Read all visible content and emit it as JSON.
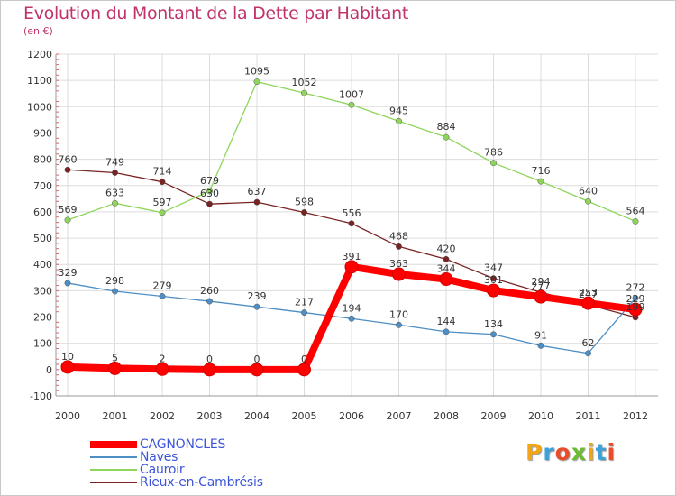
{
  "title": "Evolution du Montant de la Dette par Habitant",
  "subtitle": "(en €)",
  "chart_data": {
    "type": "line",
    "title": "Evolution du Montant de la Dette par Habitant",
    "subtitle": "(en €)",
    "xlabel": "",
    "ylabel": "",
    "ylim": [
      -100,
      1200
    ],
    "yticks": [
      -100,
      0,
      100,
      200,
      300,
      400,
      500,
      600,
      700,
      800,
      900,
      1000,
      1100,
      1200
    ],
    "grid": true,
    "legend_position": "bottom-left",
    "categories": [
      "2000",
      "2001",
      "2002",
      "2003",
      "2004",
      "2005",
      "2006",
      "2007",
      "2008",
      "2009",
      "2010",
      "2011",
      "2012"
    ],
    "series": [
      {
        "name": "CAGNONCLES",
        "color": "#ff0000",
        "values": [
          10,
          5,
          2,
          0,
          0,
          0,
          391,
          363,
          344,
          301,
          277,
          253,
          229
        ]
      },
      {
        "name": "Naves",
        "color": "#4d8ec4",
        "values": [
          329,
          298,
          279,
          260,
          239,
          217,
          194,
          170,
          144,
          134,
          91,
          62,
          272
        ]
      },
      {
        "name": "Cauroir",
        "color": "#8ed55a",
        "values": [
          569,
          633,
          597,
          679,
          1095,
          1052,
          1007,
          945,
          884,
          786,
          716,
          640,
          564
        ]
      },
      {
        "name": "Rieux-en-Cambrésis",
        "color": "#7a2323",
        "values": [
          760,
          749,
          714,
          630,
          637,
          598,
          556,
          468,
          420,
          347,
          294,
          247,
          199
        ]
      }
    ]
  },
  "legend": {
    "items": [
      {
        "label": "CAGNONCLES"
      },
      {
        "label": "Naves"
      },
      {
        "label": "Cauroir"
      },
      {
        "label": "Rieux-en-Cambrésis"
      }
    ]
  },
  "logo": {
    "letters": [
      "P",
      "r",
      "o",
      "x",
      "i",
      "t",
      "i"
    ],
    "colors": [
      "#f2a516",
      "#3da1d8",
      "#e94c2a",
      "#6cbc2f",
      "#f2a516",
      "#3da1d8",
      "#e94c2a"
    ]
  }
}
